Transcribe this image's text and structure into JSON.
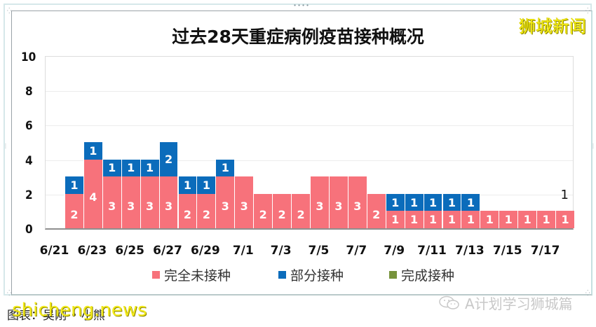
{
  "title": "过去28天重症病例疫苗接种概况",
  "brand": "狮城新闻",
  "colors": {
    "unvaccinated": "#f7727b",
    "partial": "#0b6cbb",
    "full": "#77933c"
  },
  "legend": [
    {
      "label": "完全未接种",
      "color": "#f7727b"
    },
    {
      "label": "部分接种",
      "color": "#0b6cbb"
    },
    {
      "label": "完成接种",
      "color": "#77933c"
    }
  ],
  "y_ticks": [
    "10",
    "8",
    "6",
    "4",
    "2",
    "0"
  ],
  "x_ticks": [
    "6/21",
    "6/23",
    "6/25",
    "6/27",
    "6/29",
    "7/1",
    "7/3",
    "7/5",
    "7/7",
    "7/9",
    "7/11",
    "7/13",
    "7/15",
    "7/17"
  ],
  "extra_label": "1",
  "footer": {
    "source": "图表：吴刚 • 小熊",
    "watermark": "shicheng.news",
    "account": "A计划学习狮城篇"
  },
  "chart_data": {
    "type": "bar",
    "stacked": true,
    "title": "过去28天重症病例疫苗接种概况",
    "xlabel": "",
    "ylabel": "",
    "ylim": [
      0,
      10
    ],
    "y_ticks": [
      0,
      2,
      4,
      6,
      8,
      10
    ],
    "grid": true,
    "legend_position": "bottom",
    "categories": [
      "6/21",
      "6/22",
      "6/23",
      "6/24",
      "6/25",
      "6/26",
      "6/27",
      "6/28",
      "6/29",
      "6/30",
      "7/1",
      "7/2",
      "7/3",
      "7/4",
      "7/5",
      "7/6",
      "7/7",
      "7/8",
      "7/9",
      "7/10",
      "7/11",
      "7/12",
      "7/13",
      "7/14",
      "7/15",
      "7/16",
      "7/17",
      "7/18"
    ],
    "series": [
      {
        "name": "完全未接种",
        "color": "#f7727b",
        "values": [
          0,
          2,
          4,
          3,
          3,
          3,
          3,
          2,
          2,
          3,
          3,
          2,
          2,
          2,
          3,
          3,
          3,
          2,
          1,
          1,
          1,
          1,
          1,
          1,
          1,
          1,
          1,
          1
        ]
      },
      {
        "name": "部分接种",
        "color": "#0b6cbb",
        "values": [
          0,
          1,
          1,
          1,
          1,
          1,
          2,
          1,
          1,
          1,
          0,
          0,
          0,
          0,
          0,
          0,
          0,
          0,
          1,
          1,
          1,
          1,
          1,
          0,
          0,
          0,
          0,
          0
        ]
      },
      {
        "name": "完成接种",
        "color": "#77933c",
        "values": [
          0,
          0,
          0,
          0,
          0,
          0,
          0,
          0,
          0,
          0,
          0,
          0,
          0,
          0,
          0,
          0,
          0,
          0,
          0,
          0,
          0,
          0,
          0,
          0,
          0,
          0,
          0,
          0
        ]
      }
    ],
    "annotations": [
      {
        "x": "7/18",
        "text": "1"
      }
    ]
  }
}
